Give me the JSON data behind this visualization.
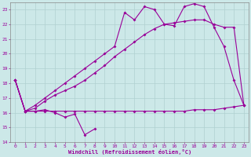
{
  "xlabel": "Windchill (Refroidissement éolien,°C)",
  "xlim": [
    -0.5,
    23.5
  ],
  "ylim": [
    14,
    23.5
  ],
  "xticks": [
    0,
    1,
    2,
    3,
    4,
    5,
    6,
    7,
    8,
    9,
    10,
    11,
    12,
    13,
    14,
    15,
    16,
    17,
    18,
    19,
    20,
    21,
    22,
    23
  ],
  "yticks": [
    14,
    15,
    16,
    17,
    18,
    19,
    20,
    21,
    22,
    23
  ],
  "bg_color": "#cce8e8",
  "grid_color": "#b0d0d0",
  "line_color": "#990099",
  "line1_y": [
    18.2,
    16.1,
    16.1,
    16.2,
    16.0,
    15.7,
    15.9,
    14.5,
    14.9,
    null,
    null,
    null,
    null,
    null,
    null,
    null,
    null,
    null,
    null,
    null,
    null,
    null,
    null,
    null
  ],
  "line2_y": [
    18.2,
    16.1,
    16.1,
    16.1,
    16.1,
    16.1,
    16.1,
    16.1,
    16.1,
    16.1,
    16.1,
    16.1,
    16.1,
    16.1,
    16.1,
    16.1,
    16.1,
    16.1,
    16.2,
    16.2,
    16.2,
    16.3,
    16.4,
    16.5
  ],
  "line3_y": [
    18.2,
    16.1,
    16.3,
    16.8,
    17.2,
    17.5,
    17.8,
    18.2,
    18.7,
    19.2,
    19.8,
    20.3,
    20.8,
    21.3,
    21.7,
    22.0,
    22.1,
    22.2,
    22.3,
    22.3,
    22.0,
    21.8,
    21.8,
    16.5
  ],
  "line4_y": [
    18.2,
    16.1,
    16.5,
    17.0,
    17.5,
    18.0,
    18.5,
    19.0,
    19.5,
    20.0,
    20.5,
    22.8,
    22.3,
    23.2,
    23.0,
    22.0,
    21.9,
    23.2,
    23.4,
    23.2,
    21.8,
    20.5,
    18.2,
    16.5
  ]
}
